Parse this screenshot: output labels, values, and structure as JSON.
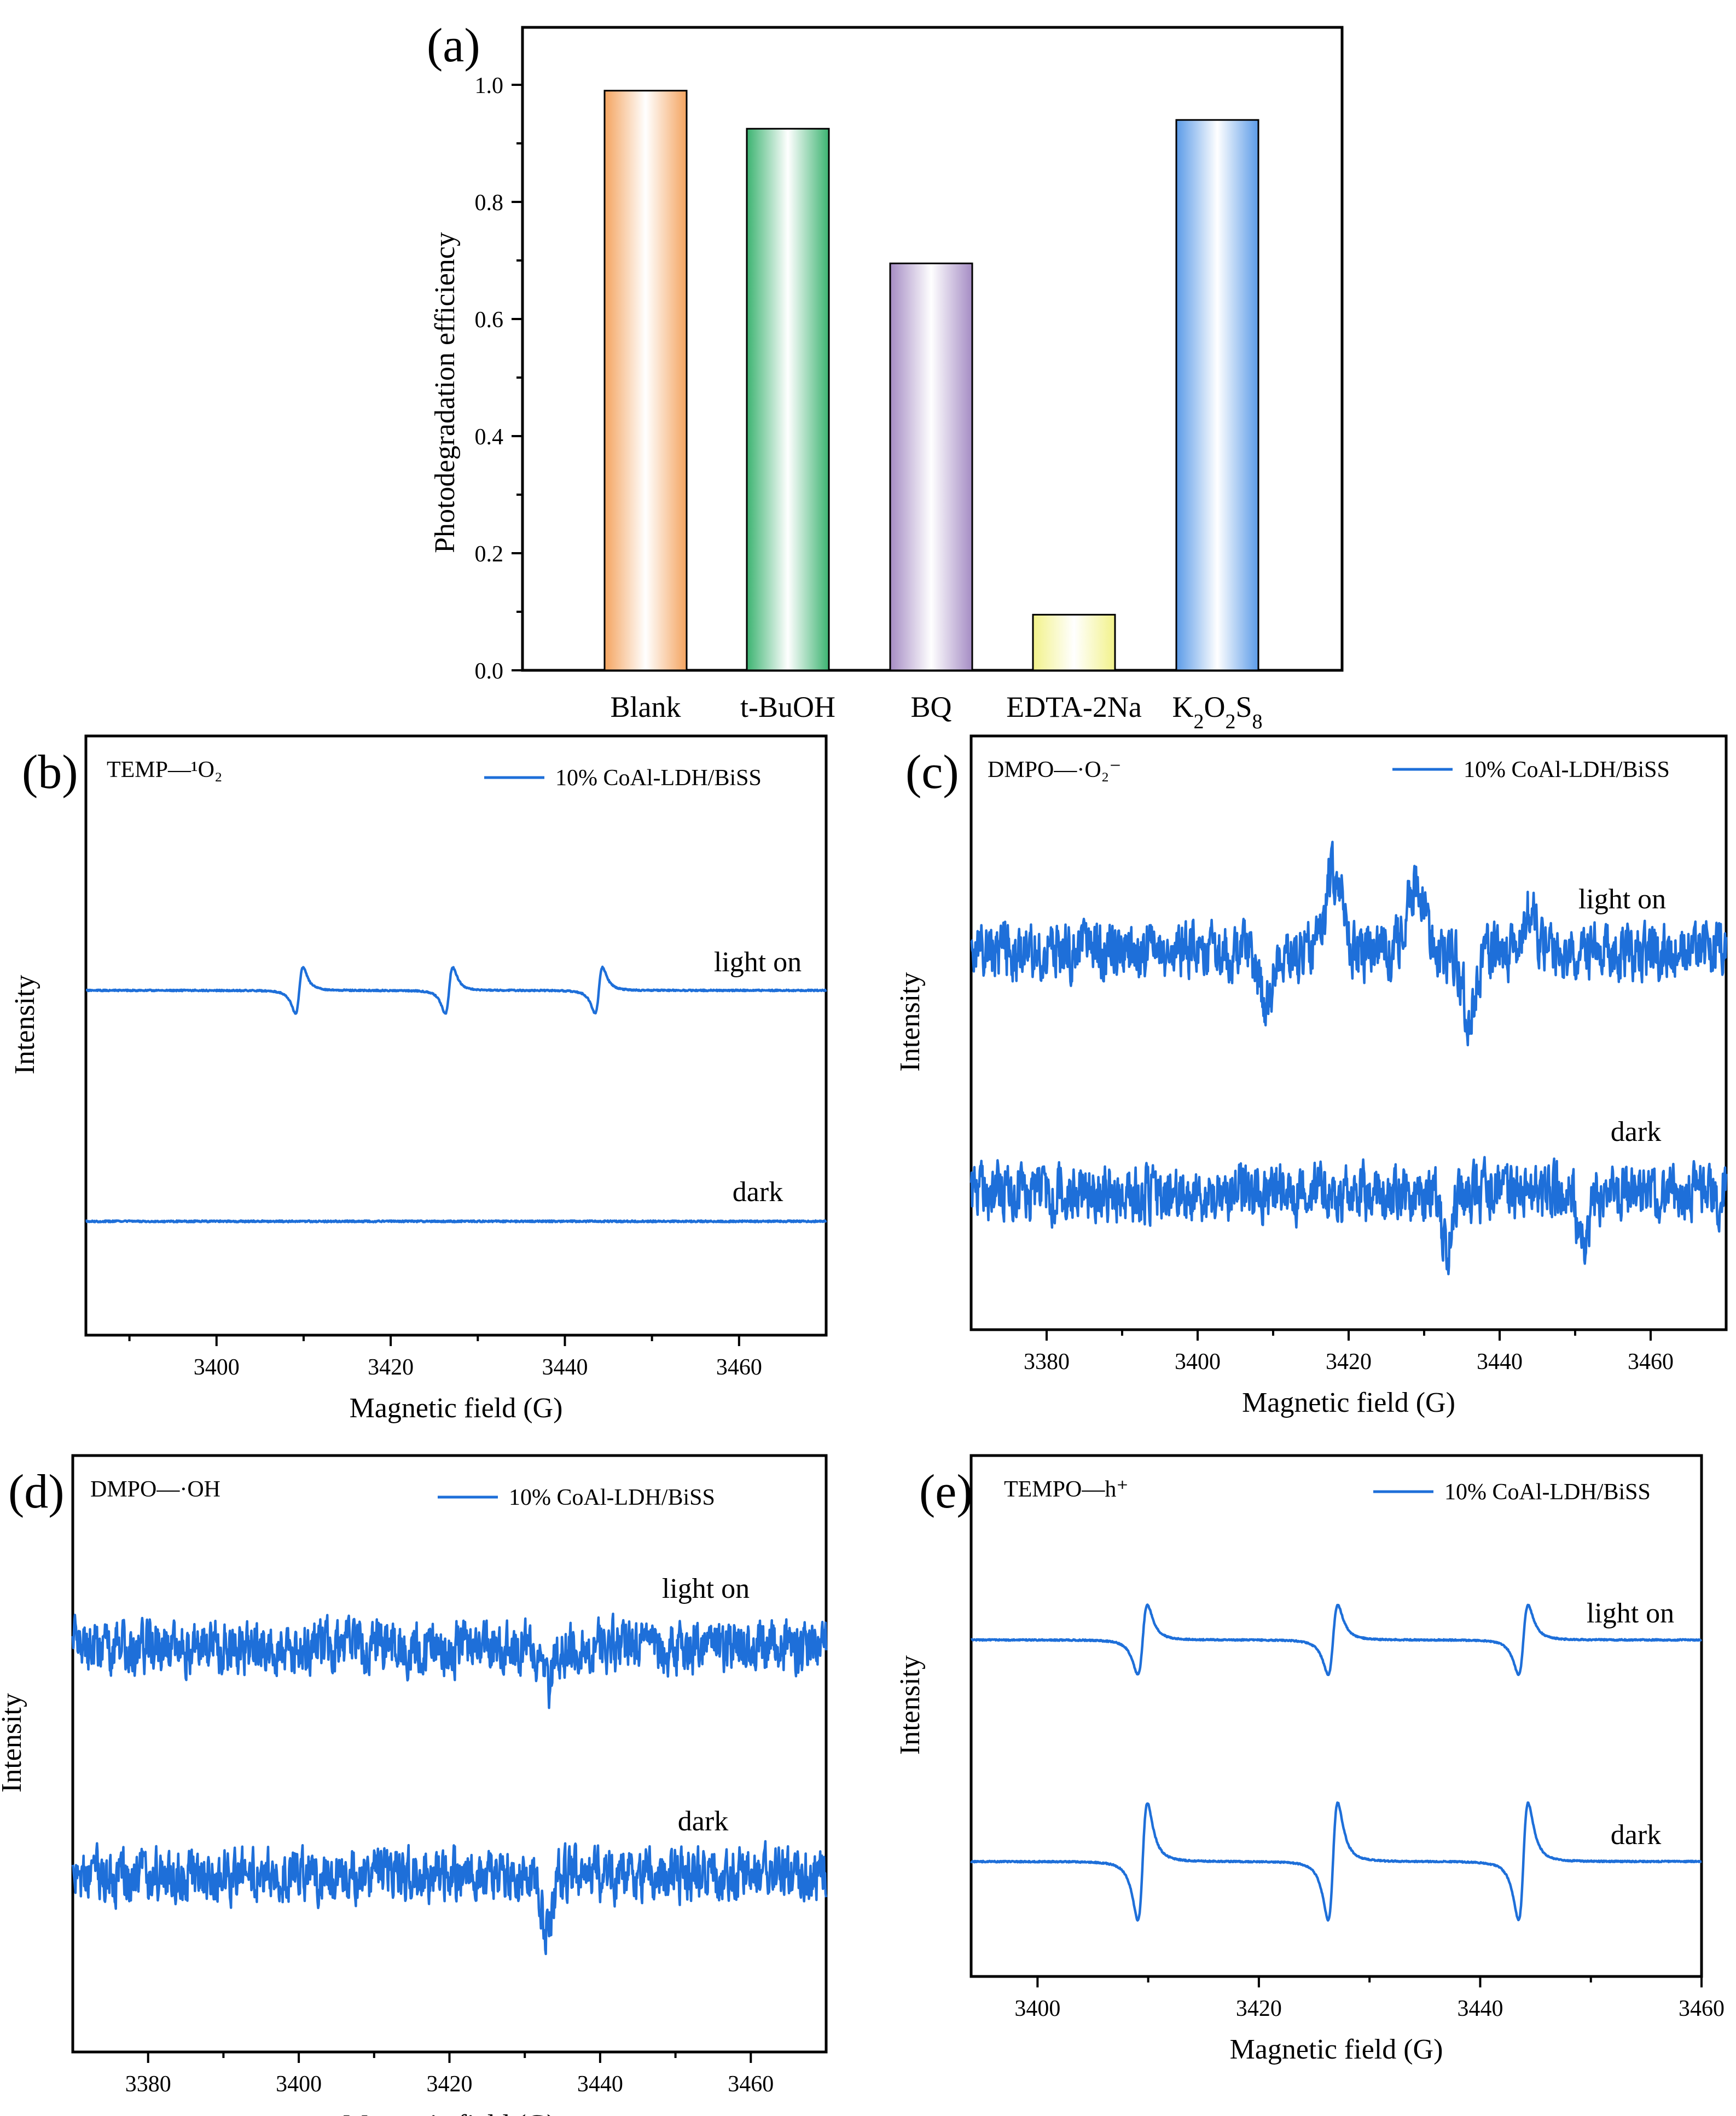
{
  "chart_data": [
    {
      "id": "a",
      "type": "bar",
      "panel_label": "(a)",
      "ylabel": "Photodegradation efficiency",
      "xlabel": "",
      "ylim": [
        0,
        1.0
      ],
      "yticks": [
        "0.0",
        "0.2",
        "0.4",
        "0.6",
        "0.8",
        "1.0"
      ],
      "categories": [
        "Blank",
        "t-BuOH",
        "BQ",
        "EDTA-2Na",
        "K2O2S8"
      ],
      "values": [
        0.99,
        0.925,
        0.695,
        0.095,
        0.94
      ],
      "colors": [
        "#f4a460",
        "#3cb371",
        "#a58cc4",
        "#f2f28a",
        "#5b9be8"
      ]
    },
    {
      "id": "b",
      "type": "line",
      "panel_label": "(b)",
      "species_label": "TEMP—¹O₂",
      "legend": "10% CoAl-LDH/BiSS",
      "xlabel": "Magnetic field (G)",
      "ylabel": "Intensity",
      "xlim": [
        3385,
        3470
      ],
      "xticks": [
        "3400",
        "3420",
        "3440",
        "3460"
      ],
      "series": [
        {
          "name": "light on",
          "shape": "triplet",
          "centers": [
            3409.5,
            3426.7,
            3443.9
          ]
        },
        {
          "name": "dark",
          "shape": "flat"
        }
      ],
      "color": "#1e6fd9"
    },
    {
      "id": "c",
      "type": "line",
      "panel_label": "(c)",
      "species_label": "DMPO—·O₂⁻",
      "legend": "10% CoAl-LDH/BiSS",
      "xlabel": "Magnetic field (G)",
      "ylabel": "Intensity",
      "xlim": [
        3370,
        3470
      ],
      "xticks": [
        "3380",
        "3400",
        "3420",
        "3440",
        "3460"
      ],
      "series": [
        {
          "name": "light on",
          "shape": "noisy"
        },
        {
          "name": "dark",
          "shape": "noisy"
        }
      ],
      "color": "#1e6fd9"
    },
    {
      "id": "d",
      "type": "line",
      "panel_label": "(d)",
      "species_label": "DMPO—·OH",
      "legend": "10% CoAl-LDH/BiSS",
      "xlabel": "Magnetic field (G)",
      "ylabel": "Intensity",
      "xlim": [
        3370,
        3470
      ],
      "xticks": [
        "3380",
        "3400",
        "3420",
        "3440",
        "3460"
      ],
      "series": [
        {
          "name": "light on",
          "shape": "noisy"
        },
        {
          "name": "dark",
          "shape": "noisy"
        }
      ],
      "color": "#1e6fd9"
    },
    {
      "id": "e",
      "type": "line",
      "panel_label": "(e)",
      "species_label": "TEMPO—h⁺",
      "legend": "10% CoAl-LDH/BiSS",
      "xlabel": "Magnetic field  (G)",
      "ylabel": "Intensity",
      "xlim": [
        3394,
        3460
      ],
      "xticks": [
        "3400",
        "3420",
        "3440",
        "3460"
      ],
      "series": [
        {
          "name": "light on",
          "shape": "triplet",
          "centers": [
            3409.5,
            3426.7,
            3443.9
          ]
        },
        {
          "name": "dark",
          "shape": "triplet",
          "centers": [
            3409.5,
            3426.7,
            3443.9
          ]
        }
      ],
      "color": "#1e6fd9"
    }
  ]
}
